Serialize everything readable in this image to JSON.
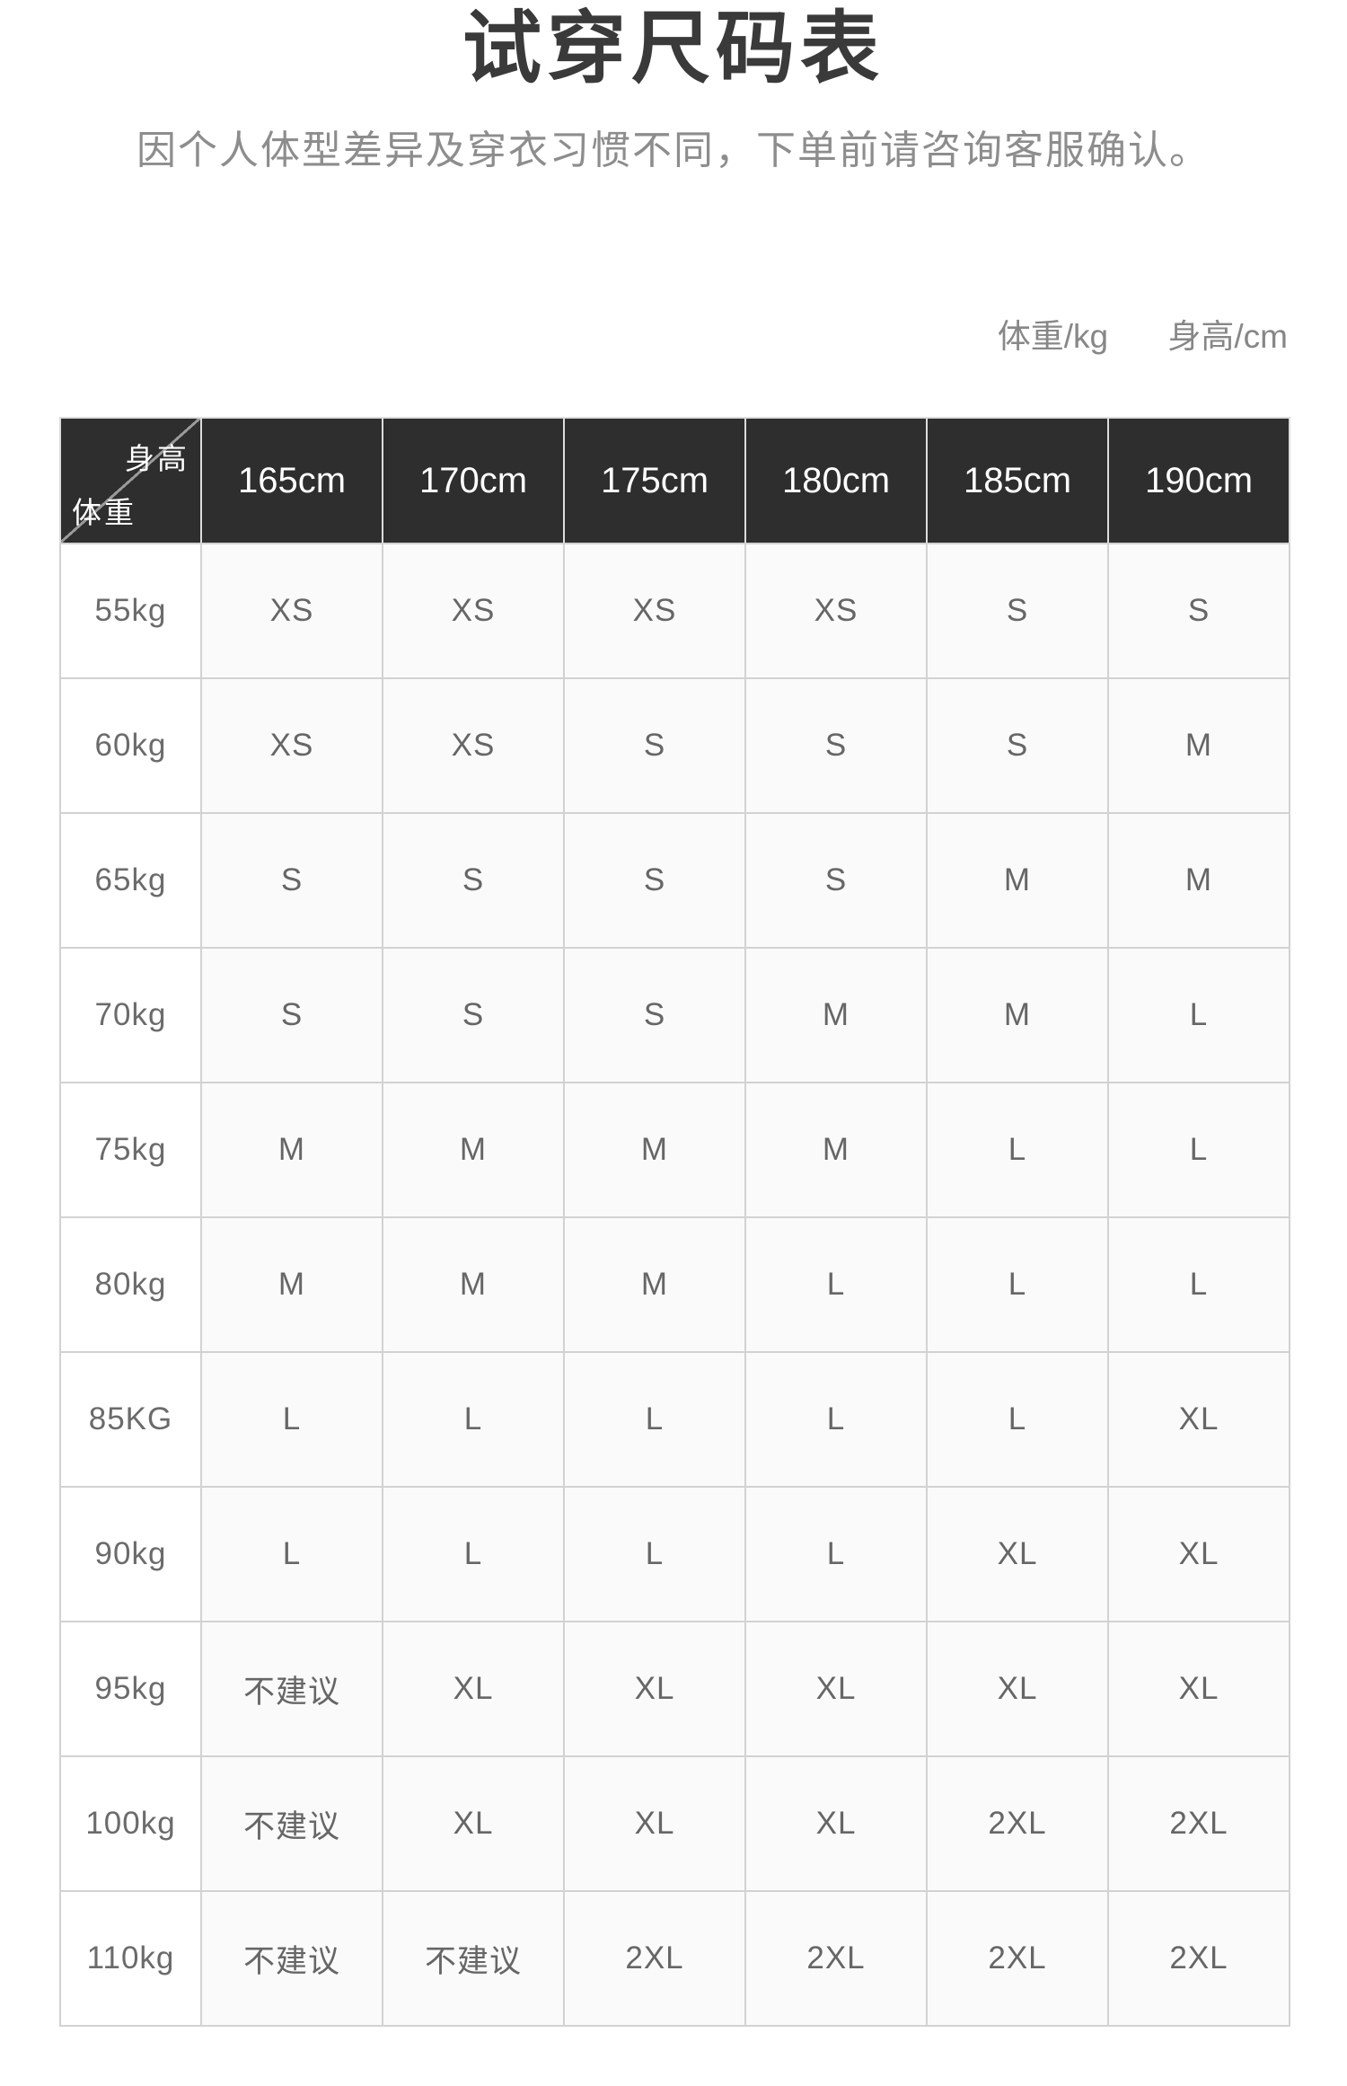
{
  "title": "试穿尺码表",
  "subtitle": "因个人体型差异及穿衣习惯不同，下单前请咨询客服确认。",
  "unit_labels": {
    "weight": "体重/kg",
    "height": "身高/cm"
  },
  "chart_data": {
    "type": "table",
    "title": "试穿尺码表",
    "corner": {
      "top_right": "身高",
      "bottom_left": "体重"
    },
    "height_columns": [
      "165cm",
      "170cm",
      "175cm",
      "180cm",
      "185cm",
      "190cm"
    ],
    "rows": [
      {
        "weight": "55kg",
        "sizes": [
          "XS",
          "XS",
          "XS",
          "XS",
          "S",
          "S"
        ]
      },
      {
        "weight": "60kg",
        "sizes": [
          "XS",
          "XS",
          "S",
          "S",
          "S",
          "M"
        ]
      },
      {
        "weight": "65kg",
        "sizes": [
          "S",
          "S",
          "S",
          "S",
          "M",
          "M"
        ]
      },
      {
        "weight": "70kg",
        "sizes": [
          "S",
          "S",
          "S",
          "M",
          "M",
          "L"
        ]
      },
      {
        "weight": "75kg",
        "sizes": [
          "M",
          "M",
          "M",
          "M",
          "L",
          "L"
        ]
      },
      {
        "weight": "80kg",
        "sizes": [
          "M",
          "M",
          "M",
          "L",
          "L",
          "L"
        ]
      },
      {
        "weight": "85KG",
        "sizes": [
          "L",
          "L",
          "L",
          "L",
          "L",
          "XL"
        ]
      },
      {
        "weight": "90kg",
        "sizes": [
          "L",
          "L",
          "L",
          "L",
          "XL",
          "XL"
        ]
      },
      {
        "weight": "95kg",
        "sizes": [
          "不建议",
          "XL",
          "XL",
          "XL",
          "XL",
          "XL"
        ]
      },
      {
        "weight": "100kg",
        "sizes": [
          "不建议",
          "XL",
          "XL",
          "XL",
          "2XL",
          "2XL"
        ]
      },
      {
        "weight": "110kg",
        "sizes": [
          "不建议",
          "不建议",
          "2XL",
          "2XL",
          "2XL",
          "2XL"
        ]
      }
    ],
    "not_recommended_label": "不建议"
  },
  "colors": {
    "header_bg": "#2e2e2e",
    "header_text": "#ffffff",
    "diagonal_line": "#9a9a9a",
    "body_text": "#666666",
    "title_text": "#3a3a3a",
    "subtitle_text": "#8d8d8d",
    "border": "#d2d2d2",
    "data_cell_bg": "#fafafa",
    "weight_cell_bg": "#ffffff"
  }
}
